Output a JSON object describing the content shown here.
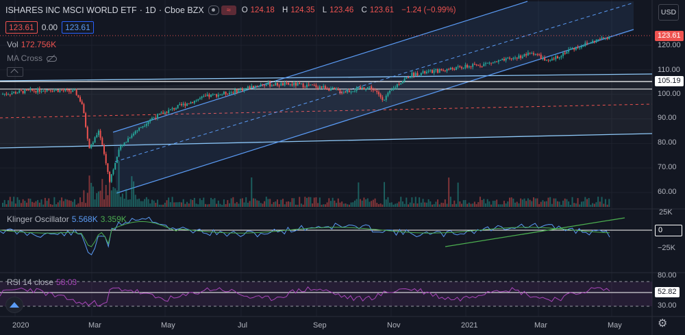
{
  "header": {
    "symbol": "ISHARES INC MSCI WORLD ETF",
    "interval": "1D",
    "exchange": "Cboe BZX",
    "o_label": "O",
    "o_value": "124.18",
    "h_label": "H",
    "h_value": "124.35",
    "l_label": "L",
    "l_value": "123.46",
    "c_label": "C",
    "c_value": "123.61",
    "change": "−1.24 (−0.99%)",
    "sell_price": "123.61",
    "spread": "0.00",
    "buy_price": "123.61"
  },
  "volume": {
    "label": "Vol",
    "value": "172.756K"
  },
  "ma_cross": {
    "label": "MA Cross"
  },
  "klinger": {
    "label": "Klinger Oscillator",
    "value1": "5.568K",
    "value2": "3.359K"
  },
  "rsi": {
    "label": "RSI 14 close",
    "value": "58.03"
  },
  "axis": {
    "currency": "USD",
    "price_ticks": [
      "120.00",
      "110.00",
      "100.00",
      "90.00",
      "80.00",
      "70.00",
      "60.00"
    ],
    "price_tag": "123.61",
    "level_tag": "105.19",
    "klinger_ticks": [
      "25K",
      "0",
      "−25K"
    ],
    "rsi_ticks": [
      "80.00",
      "52.82",
      "30.00"
    ],
    "time_ticks": [
      "2020",
      "Mar",
      "May",
      "Jul",
      "Sep",
      "Nov",
      "2021",
      "Mar",
      "May"
    ]
  },
  "colors": {
    "up": "#26a69a",
    "down": "#ef5350",
    "channel": "#5b9cf6",
    "klinger": "#5b9cf6",
    "signal": "#4caf50",
    "rsi": "#ab47bc"
  },
  "icons": [
    "eye-icon",
    "flag-icon",
    "hide-icon",
    "collapse-icon",
    "tradingview-logo-icon",
    "gear-icon"
  ],
  "chart_data": {
    "type": "candlestick",
    "x": [
      "2020-01",
      "2020-02",
      "2020-03",
      "2020-04",
      "2020-05",
      "2020-06",
      "2020-07",
      "2020-08",
      "2020-09",
      "2020-10",
      "2020-11",
      "2020-12",
      "2021-01",
      "2021-02",
      "2021-03",
      "2021-04"
    ],
    "close_approx": [
      100,
      101,
      78,
      83,
      90,
      95,
      99,
      103,
      101,
      98,
      105,
      110,
      112,
      115,
      117,
      123.61
    ],
    "low_approx": [
      98,
      96,
      58,
      70,
      83,
      90,
      94,
      98,
      96,
      95,
      94,
      106,
      108,
      111,
      113,
      117
    ],
    "high_approx": [
      102,
      103,
      100,
      87,
      93,
      98,
      101,
      105,
      106,
      102,
      108,
      112,
      115,
      118,
      120,
      125
    ],
    "ylim": [
      55,
      130
    ],
    "levels": [
      105.19
    ],
    "last_price": 123.61,
    "klinger_last": [
      5568,
      3359
    ],
    "rsi_last": 58.03,
    "rsi_band": [
      30,
      80
    ],
    "grid": true
  }
}
